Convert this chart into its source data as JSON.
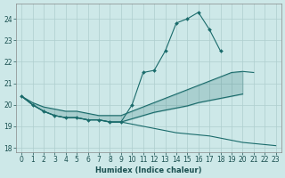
{
  "x": [
    0,
    1,
    2,
    3,
    4,
    5,
    6,
    7,
    8,
    9,
    10,
    11,
    12,
    13,
    14,
    15,
    16,
    17,
    18,
    19,
    20,
    21,
    22,
    23
  ],
  "line_spiky": [
    20.4,
    20.0,
    19.7,
    19.5,
    19.4,
    19.4,
    19.3,
    19.3,
    19.2,
    19.2,
    20.0,
    21.5,
    21.6,
    22.5,
    23.8,
    24.0,
    24.3,
    23.5,
    22.5,
    null,
    null,
    null,
    null,
    null
  ],
  "line_upper": [
    20.4,
    20.1,
    19.9,
    19.8,
    19.7,
    19.7,
    19.6,
    19.5,
    19.5,
    19.5,
    19.7,
    19.9,
    20.1,
    20.3,
    20.5,
    20.7,
    20.9,
    21.1,
    21.3,
    21.5,
    21.55,
    21.5,
    null,
    null
  ],
  "line_lower_top": [
    20.4,
    20.0,
    19.7,
    19.5,
    19.4,
    19.4,
    19.3,
    19.3,
    19.2,
    19.2,
    19.35,
    19.5,
    19.65,
    19.75,
    19.85,
    19.95,
    20.1,
    20.2,
    20.3,
    20.4,
    20.5,
    null,
    null,
    null
  ],
  "line_bottom_desc": [
    20.4,
    20.0,
    19.7,
    19.5,
    19.4,
    19.4,
    19.3,
    19.3,
    19.2,
    19.2,
    19.1,
    19.0,
    18.9,
    18.8,
    18.7,
    18.65,
    18.6,
    18.55,
    18.45,
    18.35,
    18.25,
    18.2,
    18.15,
    18.1
  ],
  "bg_color": "#cde8e8",
  "line_color": "#1a6b6b",
  "grid_color": "#aecece",
  "xlabel": "Humidex (Indice chaleur)",
  "ylim": [
    17.8,
    24.7
  ],
  "xlim": [
    -0.5,
    23.5
  ],
  "yticks": [
    18,
    19,
    20,
    21,
    22,
    23,
    24
  ],
  "xticks": [
    0,
    1,
    2,
    3,
    4,
    5,
    6,
    7,
    8,
    9,
    10,
    11,
    12,
    13,
    14,
    15,
    16,
    17,
    18,
    19,
    20,
    21,
    22,
    23
  ]
}
